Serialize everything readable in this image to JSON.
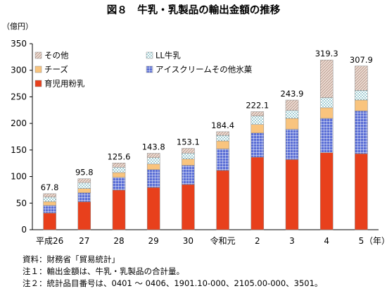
{
  "chart_data": {
    "type": "bar",
    "stacked": true,
    "title": "図８　牛乳・乳製品の輸出金額の推移",
    "ylabel": "（億円）",
    "xunit": "（年）",
    "ylim": [
      0,
      350
    ],
    "yticks": [
      0,
      50,
      100,
      150,
      200,
      250,
      300,
      350
    ],
    "grid": false,
    "legend_position": "top-left",
    "categories": [
      "平成26",
      "27",
      "28",
      "29",
      "30",
      "令和元",
      "2",
      "3",
      "4",
      "5"
    ],
    "totals": [
      "67.8",
      "95.8",
      "125.6",
      "143.8",
      "153.1",
      "184.4",
      "222.1",
      "243.9",
      "319.3",
      "307.9"
    ],
    "series": [
      {
        "name": "育児用粉乳",
        "color": "#e8401c",
        "pattern": "solid",
        "values": [
          31.3,
          52.5,
          74.5,
          79.5,
          85.0,
          111.5,
          136.5,
          132.0,
          145.0,
          143.0
        ]
      },
      {
        "name": "アイスクリームその他氷菓",
        "color": "#5b6fd6",
        "pattern": "grid",
        "values": [
          14.5,
          17.0,
          24.0,
          33.5,
          36.0,
          40.5,
          45.5,
          57.0,
          64.5,
          80.5
        ]
      },
      {
        "name": "チーズ",
        "color": "#f9c47e",
        "pattern": "solid",
        "values": [
          7.0,
          8.0,
          9.0,
          10.5,
          12.0,
          15.0,
          16.0,
          20.5,
          20.0,
          20.5
        ]
      },
      {
        "name": "LL牛乳",
        "color": "#4aa3b0",
        "pattern": "dots",
        "values": [
          8.5,
          11.0,
          10.0,
          12.0,
          11.0,
          10.5,
          16.0,
          15.0,
          19.0,
          18.0
        ]
      },
      {
        "name": "その他",
        "color": "#e9d9cf",
        "pattern": "hatch",
        "values": [
          6.5,
          7.3,
          8.1,
          8.3,
          9.1,
          6.9,
          8.1,
          19.4,
          70.8,
          45.9
        ]
      }
    ],
    "notes": [
      "資料：財務省「貿易統計」",
      "注１：輸出金額は、牛乳・乳製品の合計量。",
      "注２：統計品目番号は、0401 ～ 0406、1901.10-000、2105.00-000、3501。"
    ]
  }
}
